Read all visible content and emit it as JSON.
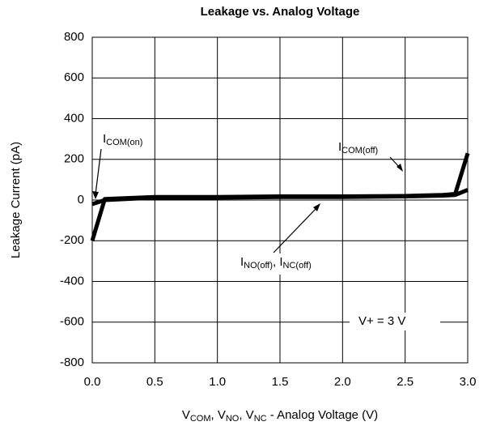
{
  "chart_data": {
    "type": "line",
    "title": "Leakage vs. Analog Voltage",
    "ylabel": "Leakage Current  (pA)",
    "xlabel_parts": [
      "V",
      "COM",
      ", V",
      "NO",
      ", V",
      "NC",
      " - Analog Voltage (V)"
    ],
    "x": [
      0,
      0.1,
      0.5,
      1.0,
      1.5,
      2.0,
      2.5,
      2.8,
      2.9,
      3.0
    ],
    "series": [
      {
        "color": "#000000",
        "values": [
          -200,
          5,
          15,
          15,
          18,
          18,
          20,
          25,
          30,
          230
        ]
      },
      {
        "color": "#000000",
        "values": [
          -20,
          0,
          12,
          12,
          15,
          15,
          18,
          22,
          25,
          50
        ]
      }
    ],
    "xlim": [
      0,
      3
    ],
    "xticks": [
      {
        "value": 0,
        "label": "0.0"
      },
      0.5,
      {
        "value": 1,
        "label": "1.0"
      },
      1.5,
      {
        "value": 2,
        "label": "2.0"
      },
      2.5,
      {
        "value": 3,
        "label": "3.0"
      }
    ],
    "ylim": [
      -800,
      800
    ],
    "yticks": [
      -800,
      -600,
      -400,
      -200,
      0,
      200,
      400,
      600,
      800
    ],
    "grid": true,
    "annotations": {
      "com_on": [
        "I",
        "COM(on)"
      ],
      "com_off": [
        "I",
        "COM(off)"
      ],
      "no_nc_off": [
        "I",
        "NO(off)",
        ", I",
        "NC(off)"
      ],
      "supply": "V+ = 3 V"
    }
  }
}
